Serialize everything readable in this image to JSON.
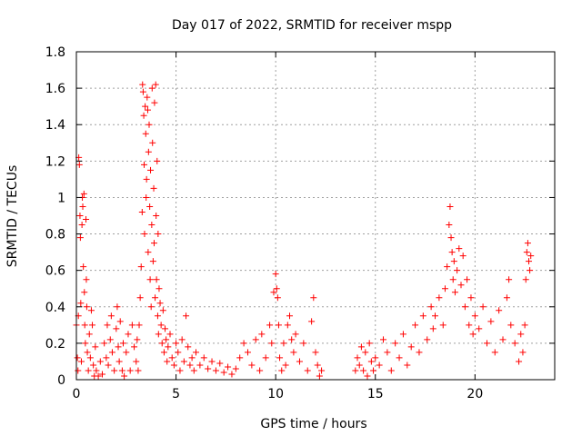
{
  "chart_data": {
    "type": "scatter",
    "title": "Day 017 of 2022, SRMTID for receiver mspp",
    "xlabel": "GPS time / hours",
    "ylabel": "SRMTID / TECUs",
    "xlim": [
      0,
      24
    ],
    "ylim": [
      0,
      1.8
    ],
    "xticks": [
      0,
      5,
      10,
      15,
      20
    ],
    "xtick_labels": [
      "0",
      "5",
      "10",
      "15",
      "20"
    ],
    "yticks": [
      0,
      0.2,
      0.4,
      0.6,
      0.8,
      1.0,
      1.2,
      1.4,
      1.6,
      1.8
    ],
    "ytick_labels": [
      "0",
      "0.2",
      "0.4",
      "0.6",
      "0.8",
      "1",
      "1.2",
      "1.4",
      "1.6",
      "1.8"
    ],
    "grid": true,
    "marker": "+",
    "series": [
      {
        "name": "SRMTID",
        "color": "#ff0000",
        "points": [
          [
            0.0,
            0.3
          ],
          [
            0.05,
            0.12
          ],
          [
            0.08,
            0.05
          ],
          [
            0.1,
            0.35
          ],
          [
            0.12,
            1.22
          ],
          [
            0.15,
            1.18
          ],
          [
            0.18,
            0.9
          ],
          [
            0.2,
            0.78
          ],
          [
            0.22,
            0.42
          ],
          [
            0.25,
            0.1
          ],
          [
            0.28,
            0.85
          ],
          [
            0.3,
            1.0
          ],
          [
            0.32,
            0.95
          ],
          [
            0.35,
            0.62
          ],
          [
            0.38,
            1.02
          ],
          [
            0.4,
            0.48
          ],
          [
            0.42,
            0.3
          ],
          [
            0.45,
            0.2
          ],
          [
            0.48,
            0.88
          ],
          [
            0.5,
            0.55
          ],
          [
            0.52,
            0.4
          ],
          [
            0.55,
            0.15
          ],
          [
            0.6,
            0.05
          ],
          [
            0.65,
            0.25
          ],
          [
            0.7,
            0.12
          ],
          [
            0.75,
            0.38
          ],
          [
            0.8,
            0.3
          ],
          [
            0.85,
            0.08
          ],
          [
            0.9,
            0.02
          ],
          [
            0.95,
            0.18
          ],
          [
            1.0,
            0.05
          ],
          [
            1.1,
            0.02
          ],
          [
            1.2,
            0.1
          ],
          [
            1.3,
            0.03
          ],
          [
            1.4,
            0.2
          ],
          [
            1.5,
            0.12
          ],
          [
            1.55,
            0.3
          ],
          [
            1.6,
            0.08
          ],
          [
            1.7,
            0.22
          ],
          [
            1.75,
            0.35
          ],
          [
            1.8,
            0.15
          ],
          [
            1.9,
            0.05
          ],
          [
            2.0,
            0.28
          ],
          [
            2.05,
            0.4
          ],
          [
            2.1,
            0.18
          ],
          [
            2.15,
            0.1
          ],
          [
            2.2,
            0.32
          ],
          [
            2.3,
            0.05
          ],
          [
            2.35,
            0.2
          ],
          [
            2.4,
            0.02
          ],
          [
            2.5,
            0.15
          ],
          [
            2.6,
            0.25
          ],
          [
            2.7,
            0.05
          ],
          [
            2.8,
            0.3
          ],
          [
            2.9,
            0.18
          ],
          [
            3.0,
            0.1
          ],
          [
            3.05,
            0.22
          ],
          [
            3.1,
            0.05
          ],
          [
            3.15,
            0.3
          ],
          [
            3.2,
            0.45
          ],
          [
            3.25,
            0.62
          ],
          [
            3.3,
            0.92
          ],
          [
            3.32,
            1.62
          ],
          [
            3.35,
            1.58
          ],
          [
            3.38,
            1.45
          ],
          [
            3.4,
            1.18
          ],
          [
            3.42,
            0.8
          ],
          [
            3.45,
            1.5
          ],
          [
            3.48,
            1.35
          ],
          [
            3.5,
            1.0
          ],
          [
            3.52,
            1.1
          ],
          [
            3.55,
            1.55
          ],
          [
            3.58,
            1.48
          ],
          [
            3.6,
            0.7
          ],
          [
            3.62,
            1.25
          ],
          [
            3.65,
            1.4
          ],
          [
            3.68,
            0.95
          ],
          [
            3.7,
            0.55
          ],
          [
            3.72,
            1.15
          ],
          [
            3.75,
            0.4
          ],
          [
            3.78,
            0.85
          ],
          [
            3.8,
            1.6
          ],
          [
            3.82,
            1.3
          ],
          [
            3.85,
            0.65
          ],
          [
            3.88,
            1.05
          ],
          [
            3.9,
            0.75
          ],
          [
            3.92,
            1.52
          ],
          [
            3.95,
            0.45
          ],
          [
            3.98,
            1.62
          ],
          [
            4.0,
            0.9
          ],
          [
            4.02,
            0.55
          ],
          [
            4.05,
            1.2
          ],
          [
            4.08,
            0.35
          ],
          [
            4.1,
            0.8
          ],
          [
            4.12,
            0.25
          ],
          [
            4.15,
            0.5
          ],
          [
            4.2,
            0.42
          ],
          [
            4.25,
            0.3
          ],
          [
            4.3,
            0.2
          ],
          [
            4.35,
            0.38
          ],
          [
            4.4,
            0.15
          ],
          [
            4.45,
            0.28
          ],
          [
            4.5,
            0.22
          ],
          [
            4.55,
            0.1
          ],
          [
            4.6,
            0.18
          ],
          [
            4.7,
            0.25
          ],
          [
            4.8,
            0.12
          ],
          [
            4.9,
            0.08
          ],
          [
            5.0,
            0.2
          ],
          [
            5.1,
            0.15
          ],
          [
            5.2,
            0.05
          ],
          [
            5.3,
            0.22
          ],
          [
            5.4,
            0.1
          ],
          [
            5.5,
            0.35
          ],
          [
            5.6,
            0.18
          ],
          [
            5.7,
            0.08
          ],
          [
            5.8,
            0.12
          ],
          [
            5.9,
            0.05
          ],
          [
            6.0,
            0.15
          ],
          [
            6.2,
            0.08
          ],
          [
            6.4,
            0.12
          ],
          [
            6.6,
            0.06
          ],
          [
            6.8,
            0.1
          ],
          [
            7.0,
            0.05
          ],
          [
            7.2,
            0.09
          ],
          [
            7.4,
            0.04
          ],
          [
            7.6,
            0.07
          ],
          [
            7.8,
            0.03
          ],
          [
            8.0,
            0.06
          ],
          [
            8.2,
            0.12
          ],
          [
            8.4,
            0.2
          ],
          [
            8.6,
            0.15
          ],
          [
            8.8,
            0.08
          ],
          [
            9.0,
            0.22
          ],
          [
            9.2,
            0.05
          ],
          [
            9.3,
            0.25
          ],
          [
            9.5,
            0.12
          ],
          [
            9.7,
            0.3
          ],
          [
            9.8,
            0.2
          ],
          [
            9.9,
            0.48
          ],
          [
            10.0,
            0.58
          ],
          [
            10.05,
            0.5
          ],
          [
            10.1,
            0.45
          ],
          [
            10.15,
            0.3
          ],
          [
            10.2,
            0.12
          ],
          [
            10.3,
            0.05
          ],
          [
            10.4,
            0.2
          ],
          [
            10.5,
            0.08
          ],
          [
            10.6,
            0.3
          ],
          [
            10.7,
            0.35
          ],
          [
            10.8,
            0.22
          ],
          [
            10.9,
            0.15
          ],
          [
            11.0,
            0.25
          ],
          [
            11.2,
            0.1
          ],
          [
            11.4,
            0.2
          ],
          [
            11.6,
            0.05
          ],
          [
            11.8,
            0.32
          ],
          [
            11.9,
            0.45
          ],
          [
            12.0,
            0.15
          ],
          [
            12.1,
            0.08
          ],
          [
            12.2,
            0.02
          ],
          [
            12.3,
            0.05
          ],
          [
            14.0,
            0.05
          ],
          [
            14.1,
            0.12
          ],
          [
            14.2,
            0.08
          ],
          [
            14.3,
            0.18
          ],
          [
            14.4,
            0.05
          ],
          [
            14.5,
            0.15
          ],
          [
            14.6,
            0.02
          ],
          [
            14.7,
            0.2
          ],
          [
            14.8,
            0.1
          ],
          [
            14.9,
            0.05
          ],
          [
            15.0,
            0.12
          ],
          [
            15.2,
            0.08
          ],
          [
            15.4,
            0.22
          ],
          [
            15.6,
            0.15
          ],
          [
            15.8,
            0.05
          ],
          [
            16.0,
            0.2
          ],
          [
            16.2,
            0.12
          ],
          [
            16.4,
            0.25
          ],
          [
            16.6,
            0.08
          ],
          [
            16.8,
            0.18
          ],
          [
            17.0,
            0.3
          ],
          [
            17.2,
            0.15
          ],
          [
            17.4,
            0.35
          ],
          [
            17.6,
            0.22
          ],
          [
            17.8,
            0.4
          ],
          [
            17.9,
            0.28
          ],
          [
            18.0,
            0.35
          ],
          [
            18.2,
            0.45
          ],
          [
            18.4,
            0.3
          ],
          [
            18.5,
            0.5
          ],
          [
            18.6,
            0.62
          ],
          [
            18.7,
            0.85
          ],
          [
            18.75,
            0.95
          ],
          [
            18.8,
            0.78
          ],
          [
            18.85,
            0.7
          ],
          [
            18.9,
            0.55
          ],
          [
            18.95,
            0.65
          ],
          [
            19.0,
            0.48
          ],
          [
            19.1,
            0.6
          ],
          [
            19.2,
            0.72
          ],
          [
            19.3,
            0.52
          ],
          [
            19.4,
            0.68
          ],
          [
            19.5,
            0.4
          ],
          [
            19.6,
            0.55
          ],
          [
            19.7,
            0.3
          ],
          [
            19.8,
            0.45
          ],
          [
            19.9,
            0.25
          ],
          [
            20.0,
            0.35
          ],
          [
            20.2,
            0.28
          ],
          [
            20.4,
            0.4
          ],
          [
            20.6,
            0.2
          ],
          [
            20.8,
            0.32
          ],
          [
            21.0,
            0.15
          ],
          [
            21.2,
            0.38
          ],
          [
            21.4,
            0.22
          ],
          [
            21.6,
            0.45
          ],
          [
            21.7,
            0.55
          ],
          [
            21.8,
            0.3
          ],
          [
            22.0,
            0.2
          ],
          [
            22.2,
            0.1
          ],
          [
            22.3,
            0.25
          ],
          [
            22.4,
            0.15
          ],
          [
            22.5,
            0.3
          ],
          [
            22.55,
            0.55
          ],
          [
            22.6,
            0.7
          ],
          [
            22.65,
            0.75
          ],
          [
            22.7,
            0.65
          ],
          [
            22.75,
            0.6
          ],
          [
            22.8,
            0.68
          ]
        ]
      }
    ]
  }
}
